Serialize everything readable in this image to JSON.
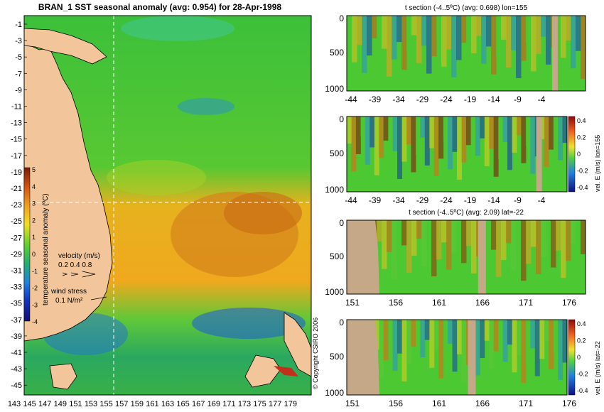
{
  "main_map": {
    "title": "BRAN_1 SST seasonal anomaly (avg: 0.954) for 28-Apr-1998",
    "y_ticks": [
      "-1",
      "-3",
      "-5",
      "-7",
      "-9",
      "-11",
      "-13",
      "-15",
      "-17",
      "-19",
      "-21",
      "-23",
      "-25",
      "-27",
      "-29",
      "-31",
      "-33",
      "-35",
      "-37",
      "-39",
      "-41",
      "-43",
      "-45"
    ],
    "x_ticks": [
      "143",
      "145",
      "147",
      "149",
      "151",
      "153",
      "155",
      "157",
      "159",
      "161",
      "163",
      "165",
      "167",
      "169",
      "171",
      "173",
      "175",
      "177",
      "179"
    ],
    "colorbar_label": "temperature seasonal anomaly (ºC)",
    "colorbar_ticks": [
      "5",
      "4",
      "3",
      "2",
      "1",
      "0",
      "-1",
      "-2",
      "-3",
      "-4"
    ],
    "velocity_label": "velocity (m/s)",
    "velocity_scale": "0.2 0.4 0.8",
    "wind_label": "wind stress",
    "wind_scale": "0.1 N/m²",
    "copyright": "© Copyright CSIRO 2006",
    "colors": {
      "land": "#f2c69a",
      "ocean_mid": "#4cc832"
    }
  },
  "panels": [
    {
      "title": "t section (-4..5ºC) (avg: 0.698) lon=155",
      "y_ticks": [
        "0",
        "500",
        "1000"
      ],
      "x_ticks": [
        "-44",
        "-39",
        "-34",
        "-29",
        "-24",
        "-19",
        "-14",
        "-9",
        "-4"
      ],
      "side_label": "",
      "side_ticks": []
    },
    {
      "title": "",
      "y_ticks": [
        "0",
        "500",
        "1000"
      ],
      "x_ticks": [
        "-44",
        "-39",
        "-34",
        "-29",
        "-24",
        "-19",
        "-14",
        "-9",
        "-4"
      ],
      "side_label": "vel. E (m/s) lon=155",
      "side_ticks": [
        "0.4",
        "0.2",
        "0",
        "-0.2",
        "-0.4"
      ]
    },
    {
      "title": "t section (-4..5ºC) (avg: 2.09) lat=-22",
      "y_ticks": [
        "0",
        "500",
        "1000"
      ],
      "x_ticks": [
        "151",
        "156",
        "161",
        "166",
        "171",
        "176"
      ],
      "side_label": "",
      "side_ticks": []
    },
    {
      "title": "",
      "y_ticks": [
        "0",
        "500",
        "1000"
      ],
      "x_ticks": [
        "151",
        "156",
        "161",
        "166",
        "171",
        "176"
      ],
      "side_label": "vel. E (m/s) lat=-22",
      "side_ticks": [
        "0.4",
        "0.2",
        "0",
        "-0.2",
        "-0.4"
      ]
    }
  ]
}
